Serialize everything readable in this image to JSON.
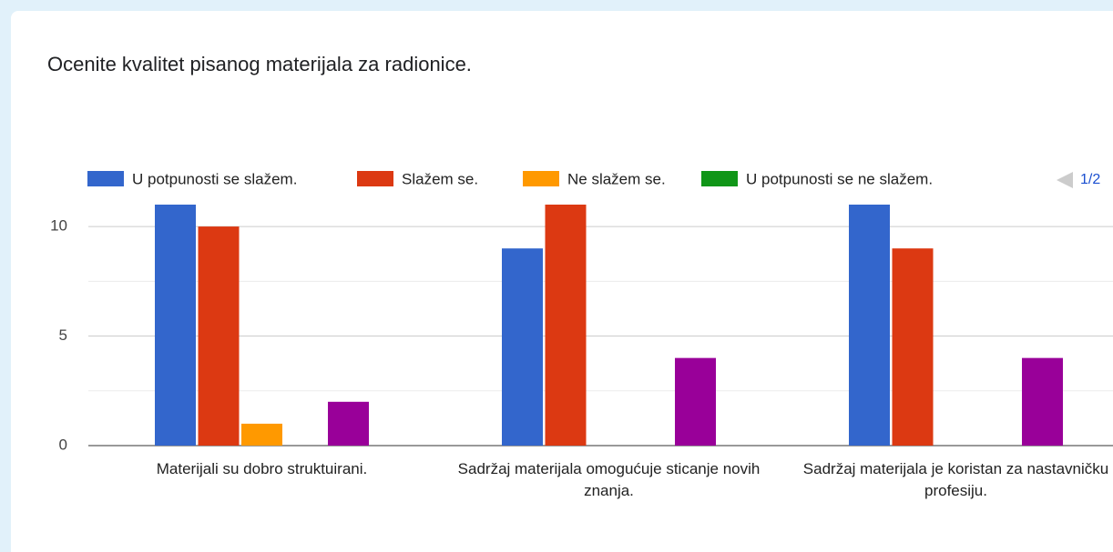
{
  "chart_data": {
    "type": "bar",
    "title": "Ocenite kvalitet pisanog materijala za radionice.",
    "categories": [
      "Materijali su dobro struktuirani.",
      "Sadržaj materijala omogućuje sticanje novih znanja.",
      "Sadržaj materijala je koristan za nastavničku profesiju."
    ],
    "series": [
      {
        "name": "U potpunosti se slažem.",
        "color": "#3366cc",
        "values": [
          11,
          9,
          11
        ]
      },
      {
        "name": "Slažem se.",
        "color": "#dc3912",
        "values": [
          10,
          11,
          9
        ]
      },
      {
        "name": "Ne slažem se.",
        "color": "#ff9900",
        "values": [
          1,
          0,
          0
        ]
      },
      {
        "name": "U potpunosti se ne slažem.",
        "color": "#109618",
        "values": [
          0,
          0,
          0
        ]
      },
      {
        "color": "#990099",
        "values": [
          2,
          4,
          4
        ]
      }
    ],
    "legend_page": "1/2",
    "ylim": [
      0,
      11
    ],
    "yticks": [
      0,
      5,
      10
    ],
    "minor_yticks": [
      2.5,
      7.5
    ],
    "grid": true
  }
}
